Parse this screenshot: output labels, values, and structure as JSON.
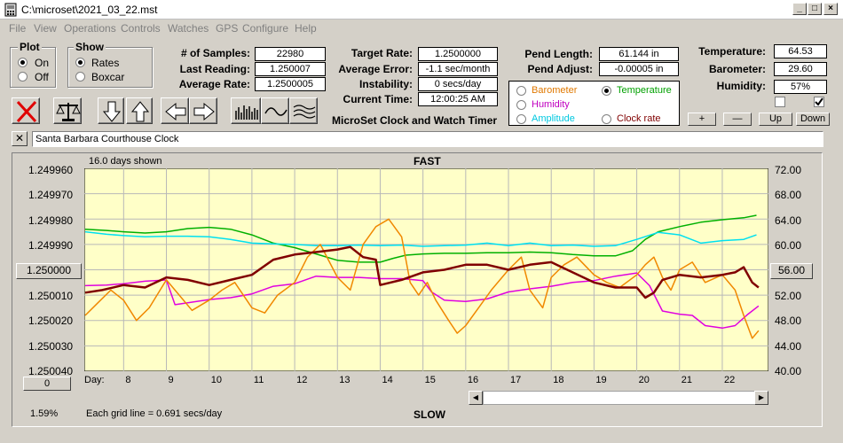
{
  "window": {
    "title": "C:\\microset\\2021_03_22.mst"
  },
  "menu": [
    "File",
    "View",
    "Operations",
    "Controls",
    "Watches",
    "GPS",
    "Configure",
    "Help"
  ],
  "plot_group": {
    "title": "Plot",
    "options": [
      "On",
      "Off"
    ],
    "selected": "On"
  },
  "show_group": {
    "title": "Show",
    "options": [
      "Rates",
      "Boxcar"
    ],
    "selected": "Rates"
  },
  "stats": {
    "samples_label": "# of Samples:",
    "samples_value": "22980",
    "last_reading_label": "Last Reading:",
    "last_reading_value": "1.250007",
    "average_rate_label": "Average Rate:",
    "average_rate_value": "1.2500005"
  },
  "rates": {
    "target_rate_label": "Target Rate:",
    "target_rate_value": "1.2500000",
    "average_error_label": "Average Error:",
    "average_error_value": "-1.1 sec/month",
    "instability_label": "Instability:",
    "instability_value": "0 secs/day",
    "current_time_label": "Current Time:",
    "current_time_value": "12:00:25 AM"
  },
  "pendulum": {
    "length_label": "Pend Length:",
    "length_value": "61.144 in",
    "adjust_label": "Pend Adjust:",
    "adjust_value": "-0.00005 in"
  },
  "environment": {
    "temperature_label": "Temperature:",
    "temperature_value": "64.53",
    "barometer_label": "Barometer:",
    "barometer_value": "29.60",
    "humidity_label": "Humidity:",
    "humidity_value": "57%",
    "checkbox_left_checked": false,
    "checkbox_right_checked": true
  },
  "sensor_select": {
    "options": [
      {
        "label": "Barometer",
        "color": "#e07800",
        "selected": false
      },
      {
        "label": "Temperature",
        "color": "#00a000",
        "selected": true
      },
      {
        "label": "Humidity",
        "color": "#c000c0",
        "selected": false
      },
      {
        "label": "Amplitude",
        "color": "#00c8e0",
        "selected": false
      },
      {
        "label": "Clock rate",
        "color": "#800000",
        "selected": false
      }
    ]
  },
  "scale_buttons": {
    "plus": "+",
    "minus": "—",
    "up": "Up",
    "down": "Down"
  },
  "app_caption": "MicroSet Clock and Watch Timer",
  "clock_name": "Santa Barbara Courthouse Clock",
  "close_button": "✕",
  "toolbar_icons": [
    "clear-icon",
    "balance-scale-icon",
    "arrow-down-icon",
    "arrow-up-icon",
    "arrow-left-icon",
    "arrow-right-icon",
    "histogram-icon",
    "wave-icon",
    "multi-wave-icon"
  ],
  "chart": {
    "top_label": "FAST",
    "bottom_label": "SLOW",
    "days_shown": "16.0 days shown",
    "grid_note": "Each grid line = 0.691 secs/day",
    "zoom_percent": "1.59%",
    "left_scroll_value": "0",
    "y_reference_button": "1.250000",
    "right_reference_button": "56.00",
    "day_label": "Day:"
  },
  "chart_data": {
    "type": "line",
    "xlabel": "Day:",
    "x_ticks": [
      8,
      9,
      10,
      11,
      12,
      13,
      14,
      15,
      16,
      17,
      18,
      19,
      20,
      21,
      22
    ],
    "xlim": [
      7.08,
      23.08
    ],
    "left_axis": {
      "ticks": [
        "1.249960",
        "1.249970",
        "1.249980",
        "1.249990",
        "1.250000",
        "1.250010",
        "1.250020",
        "1.250030",
        "1.250040"
      ],
      "range": [
        1.24996,
        1.25004
      ],
      "inverted": true
    },
    "right_axis": {
      "ticks": [
        "72.00",
        "68.00",
        "64.00",
        "60.00",
        "56.00",
        "52.00",
        "48.00",
        "44.00",
        "40.00"
      ],
      "range": [
        40,
        72
      ]
    },
    "grid": true,
    "series": [
      {
        "color": "#00b000",
        "axis": "right",
        "points": [
          [
            7.1,
            62.4
          ],
          [
            7.6,
            62.2
          ],
          [
            8,
            62
          ],
          [
            8.5,
            61.8
          ],
          [
            9,
            62
          ],
          [
            9.5,
            62.5
          ],
          [
            10,
            62.7
          ],
          [
            10.5,
            62.4
          ],
          [
            11,
            61.5
          ],
          [
            11.5,
            60.2
          ],
          [
            12,
            59.5
          ],
          [
            12.5,
            58.5
          ],
          [
            13,
            57.5
          ],
          [
            13.5,
            57.2
          ],
          [
            14,
            57.2
          ],
          [
            14.3,
            57.8
          ],
          [
            14.6,
            58.3
          ],
          [
            15,
            58.5
          ],
          [
            15.5,
            58.6
          ],
          [
            16,
            58.6
          ],
          [
            16.5,
            58.7
          ],
          [
            17,
            58.7
          ],
          [
            17.5,
            58.8
          ],
          [
            18,
            58.7
          ],
          [
            18.5,
            58.4
          ],
          [
            19,
            58.2
          ],
          [
            19.5,
            58.2
          ],
          [
            19.9,
            59
          ],
          [
            20.2,
            60.8
          ],
          [
            20.5,
            62
          ],
          [
            21,
            62.8
          ],
          [
            21.5,
            63.5
          ],
          [
            22,
            63.9
          ],
          [
            22.5,
            64.2
          ],
          [
            22.8,
            64.6
          ]
        ]
      },
      {
        "color": "#00e0f0",
        "axis": "right",
        "points": [
          [
            7.1,
            62
          ],
          [
            7.6,
            61.6
          ],
          [
            8,
            61.4
          ],
          [
            8.5,
            61.2
          ],
          [
            9,
            61.3
          ],
          [
            9.5,
            61.3
          ],
          [
            10,
            61.2
          ],
          [
            10.5,
            60.8
          ],
          [
            11,
            60.2
          ],
          [
            11.5,
            60.1
          ],
          [
            12,
            60
          ],
          [
            12.5,
            59.8
          ],
          [
            13,
            59.8
          ],
          [
            13.5,
            59.9
          ],
          [
            14,
            59.8
          ],
          [
            14.5,
            59.9
          ],
          [
            15,
            59.7
          ],
          [
            15.5,
            59.8
          ],
          [
            16,
            59.9
          ],
          [
            16.5,
            60.2
          ],
          [
            17,
            59.8
          ],
          [
            17.5,
            60.2
          ],
          [
            18,
            59.8
          ],
          [
            18.5,
            59.9
          ],
          [
            19,
            59.7
          ],
          [
            19.5,
            59.8
          ],
          [
            20,
            60.8
          ],
          [
            20.5,
            61.9
          ],
          [
            21,
            61.5
          ],
          [
            21.5,
            60.2
          ],
          [
            22,
            60.6
          ],
          [
            22.5,
            60.8
          ],
          [
            22.8,
            61.5
          ]
        ]
      },
      {
        "color": "#e000e0",
        "axis": "right",
        "points": [
          [
            7.1,
            53.5
          ],
          [
            7.6,
            53.6
          ],
          [
            8,
            53.8
          ],
          [
            8.5,
            54.2
          ],
          [
            9,
            54.4
          ],
          [
            9.2,
            50.5
          ],
          [
            9.5,
            50.8
          ],
          [
            10,
            51.3
          ],
          [
            10.5,
            51.6
          ],
          [
            11,
            52.2
          ],
          [
            11.5,
            53.4
          ],
          [
            12,
            53.8
          ],
          [
            12.5,
            55
          ],
          [
            13,
            54.8
          ],
          [
            13.5,
            54.8
          ],
          [
            14,
            54.6
          ],
          [
            14.5,
            54.6
          ],
          [
            15,
            54.3
          ],
          [
            15.2,
            52.5
          ],
          [
            15.5,
            51.2
          ],
          [
            16,
            51
          ],
          [
            16.5,
            51.4
          ],
          [
            17,
            52.5
          ],
          [
            17.5,
            53
          ],
          [
            18,
            53.4
          ],
          [
            18.5,
            54
          ],
          [
            19,
            54.3
          ],
          [
            19.5,
            55
          ],
          [
            20,
            55.5
          ],
          [
            20.3,
            53.5
          ],
          [
            20.6,
            49.5
          ],
          [
            21,
            49
          ],
          [
            21.3,
            48.8
          ],
          [
            21.6,
            47.2
          ],
          [
            22,
            46.8
          ],
          [
            22.3,
            47.2
          ],
          [
            22.6,
            49
          ],
          [
            22.85,
            50.3
          ]
        ]
      },
      {
        "color": "#f08800",
        "axis": "left",
        "points": [
          [
            7.1,
            1.250018
          ],
          [
            7.4,
            1.250013
          ],
          [
            7.7,
            1.250008
          ],
          [
            8,
            1.250012
          ],
          [
            8.3,
            1.25002
          ],
          [
            8.6,
            1.250015
          ],
          [
            9,
            1.250004
          ],
          [
            9.3,
            1.25001
          ],
          [
            9.6,
            1.250016
          ],
          [
            10,
            1.250012
          ],
          [
            10.3,
            1.250008
          ],
          [
            10.6,
            1.250005
          ],
          [
            11,
            1.250015
          ],
          [
            11.3,
            1.250017
          ],
          [
            11.6,
            1.25001
          ],
          [
            12,
            1.250005
          ],
          [
            12.3,
            1.249995
          ],
          [
            12.6,
            1.24999
          ],
          [
            13,
            1.250003
          ],
          [
            13.3,
            1.250008
          ],
          [
            13.6,
            1.24999
          ],
          [
            13.9,
            1.249983
          ],
          [
            14.2,
            1.24998
          ],
          [
            14.5,
            1.249987
          ],
          [
            14.7,
            1.250005
          ],
          [
            14.9,
            1.25001
          ],
          [
            15.1,
            1.250005
          ],
          [
            15.3,
            1.250012
          ],
          [
            15.6,
            1.25002
          ],
          [
            15.8,
            1.250025
          ],
          [
            16,
            1.250022
          ],
          [
            16.3,
            1.250015
          ],
          [
            16.6,
            1.250008
          ],
          [
            17,
            1.25
          ],
          [
            17.3,
            1.249995
          ],
          [
            17.5,
            1.250008
          ],
          [
            17.8,
            1.250015
          ],
          [
            18,
            1.250003
          ],
          [
            18.3,
            1.249998
          ],
          [
            18.6,
            1.249995
          ],
          [
            19,
            1.250002
          ],
          [
            19.3,
            1.250005
          ],
          [
            19.6,
            1.250007
          ],
          [
            20,
            1.250002
          ],
          [
            20.2,
            1.249998
          ],
          [
            20.4,
            1.249995
          ],
          [
            20.6,
            1.250003
          ],
          [
            20.8,
            1.250008
          ],
          [
            21,
            1.25
          ],
          [
            21.3,
            1.249997
          ],
          [
            21.6,
            1.250005
          ],
          [
            22,
            1.250002
          ],
          [
            22.3,
            1.250008
          ],
          [
            22.5,
            1.250018
          ],
          [
            22.7,
            1.250027
          ],
          [
            22.85,
            1.250024
          ]
        ]
      },
      {
        "color": "#800000",
        "axis": "left",
        "points": [
          [
            7.1,
            1.250009
          ],
          [
            7.5,
            1.250008
          ],
          [
            8,
            1.250006
          ],
          [
            8.5,
            1.250007
          ],
          [
            9,
            1.250003
          ],
          [
            9.5,
            1.250004
          ],
          [
            10,
            1.250006
          ],
          [
            10.5,
            1.250004
          ],
          [
            11,
            1.250002
          ],
          [
            11.5,
            1.249996
          ],
          [
            12,
            1.249994
          ],
          [
            12.5,
            1.249993
          ],
          [
            13,
            1.249992
          ],
          [
            13.3,
            1.249991
          ],
          [
            13.6,
            1.249995
          ],
          [
            13.9,
            1.249996
          ],
          [
            14,
            1.250006
          ],
          [
            14.5,
            1.250004
          ],
          [
            15,
            1.250001
          ],
          [
            15.5,
            1.25
          ],
          [
            16,
            1.249998
          ],
          [
            16.5,
            1.249998
          ],
          [
            17,
            1.25
          ],
          [
            17.5,
            1.249998
          ],
          [
            18,
            1.249997
          ],
          [
            18.5,
            1.250001
          ],
          [
            19,
            1.250005
          ],
          [
            19.5,
            1.250007
          ],
          [
            20,
            1.250007
          ],
          [
            20.2,
            1.250011
          ],
          [
            20.4,
            1.250009
          ],
          [
            20.6,
            1.250004
          ],
          [
            21,
            1.250002
          ],
          [
            21.5,
            1.250003
          ],
          [
            22,
            1.250002
          ],
          [
            22.3,
            1.250001
          ],
          [
            22.5,
            1.249999
          ],
          [
            22.7,
            1.250005
          ],
          [
            22.85,
            1.250007
          ]
        ]
      }
    ]
  }
}
